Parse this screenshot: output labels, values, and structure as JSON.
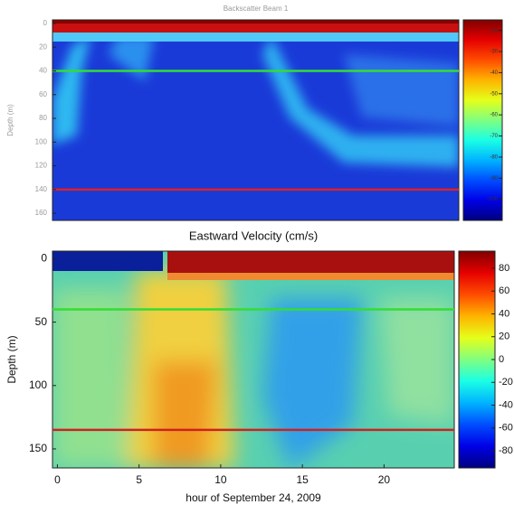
{
  "chart_data": [
    {
      "type": "heatmap",
      "title": "Backscatter Beam 1",
      "ylabel": "Depth (m)",
      "ylim": [
        -3,
        166
      ],
      "yticks": [
        0,
        20,
        40,
        60,
        80,
        100,
        120,
        140,
        160
      ],
      "clim": [
        -110,
        -15
      ],
      "cticks": [
        -20,
        -30,
        -40,
        -50,
        -60,
        -70,
        -80,
        -90,
        -100
      ],
      "hlines": [
        {
          "value": 40,
          "color": "#33dd33"
        },
        {
          "value": 140,
          "color": "#dd2222"
        }
      ]
    },
    {
      "type": "heatmap",
      "title": "Eastward Velocity (cm/s)",
      "ylabel": "Depth (m)",
      "xlabel": "hour of September 24, 2009",
      "xlim": [
        -0.3,
        24.3
      ],
      "xticks": [
        0,
        5,
        10,
        15,
        20
      ],
      "ylim": [
        -6,
        165
      ],
      "yticks": [
        0,
        50,
        100,
        150
      ],
      "clim": [
        -95,
        95
      ],
      "cticks": [
        80,
        60,
        40,
        20,
        0,
        -20,
        -40,
        -60,
        -80
      ],
      "hlines": [
        {
          "value": 40,
          "color": "#33dd33"
        },
        {
          "value": 135,
          "color": "#cc2222"
        }
      ]
    }
  ]
}
